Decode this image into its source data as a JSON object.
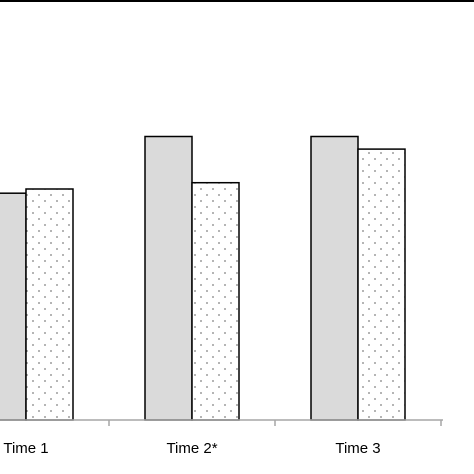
{
  "chart_data": {
    "type": "bar",
    "categories": [
      "Time 1",
      "Time 2*",
      "Time 3"
    ],
    "series": [
      {
        "values": [
          108,
          135,
          135
        ],
        "fill": "#dadada",
        "pattern": "solid"
      },
      {
        "values": [
          110,
          113,
          129
        ],
        "fill": "#ffffff",
        "pattern": "dotted"
      }
    ],
    "ylim": [
      0,
      200
    ],
    "grid": false,
    "title": "",
    "xlabel": "",
    "ylabel": ""
  },
  "colors": {
    "axis": "#a6a6a6",
    "bar_stroke": "#000000",
    "dot": "#808080",
    "text": "#000000",
    "frame": "#000000"
  }
}
